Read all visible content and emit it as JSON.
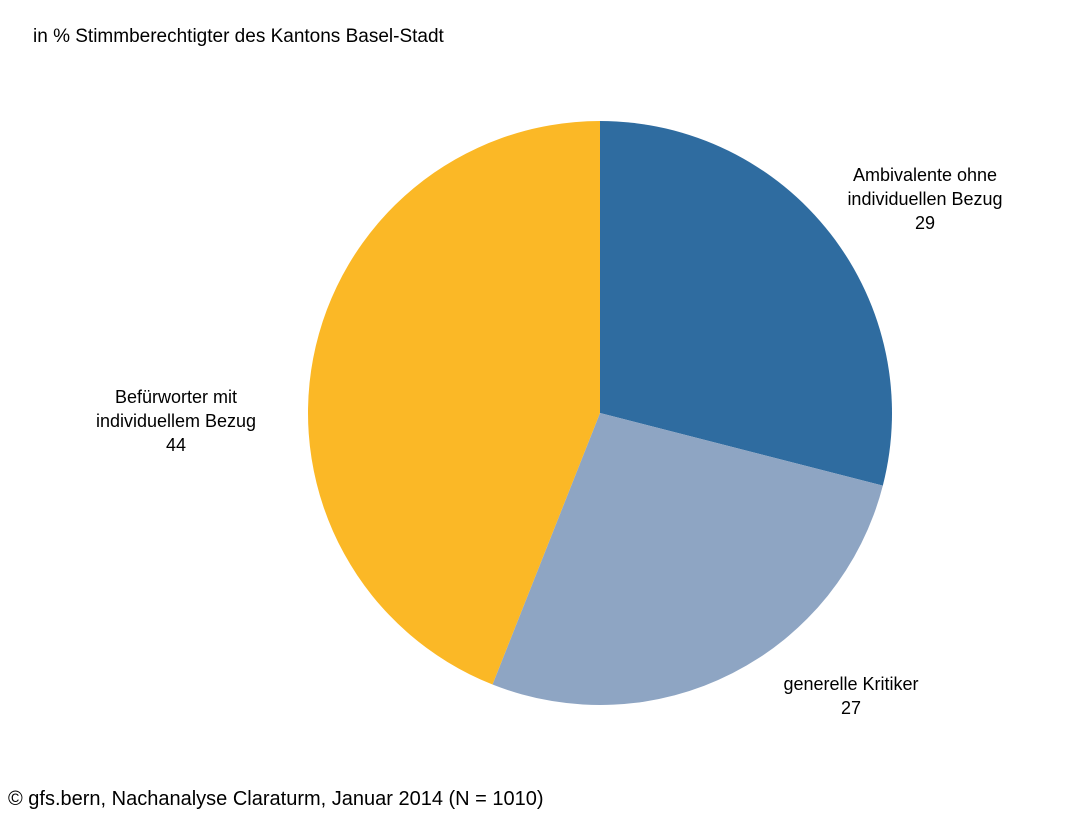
{
  "subtitle": "in % Stimmberechtigter des Kantons Basel-Stadt",
  "source": "© gfs.bern, Nachanalyse Claraturm, Januar 2014 (N = 1010)",
  "chart_data": {
    "type": "pie",
    "title": "",
    "subtitle": "in % Stimmberechtigter des Kantons Basel-Stadt",
    "slices": [
      {
        "label_lines": [
          "Ambivalente ohne",
          "individuellen Bezug"
        ],
        "value": 29,
        "color": "#2F6CA0"
      },
      {
        "label_lines": [
          "generelle Kritiker"
        ],
        "value": 27,
        "color": "#8EA5C3"
      },
      {
        "label_lines": [
          "Befürworter mit",
          "individuellem Bezug"
        ],
        "value": 44,
        "color": "#FBB826"
      }
    ],
    "start": "12 o'clock",
    "direction": "clockwise",
    "source": "© gfs.bern, Nachanalyse Claraturm, Januar 2014 (N = 1010)"
  }
}
